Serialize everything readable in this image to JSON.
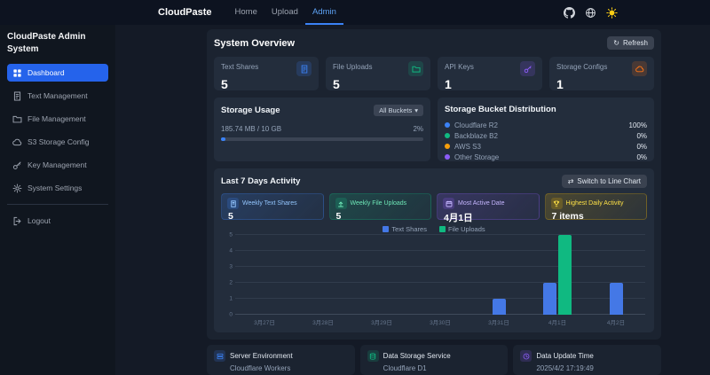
{
  "navbar": {
    "brand": "CloudPaste",
    "items": [
      {
        "label": "Home"
      },
      {
        "label": "Upload"
      },
      {
        "label": "Admin",
        "active": true
      }
    ],
    "icons": [
      "github-icon",
      "language-icon",
      "theme-toggle-sun-icon"
    ]
  },
  "sidebar": {
    "title": "CloudPaste Admin System",
    "items": [
      {
        "label": "Dashboard",
        "icon": "dashboard-icon",
        "active": true
      },
      {
        "label": "Text Management",
        "icon": "text-document-icon"
      },
      {
        "label": "File Management",
        "icon": "folder-icon"
      },
      {
        "label": "S3 Storage Config",
        "icon": "cloud-storage-icon"
      },
      {
        "label": "Key Management",
        "icon": "key-icon"
      },
      {
        "label": "System Settings",
        "icon": "gear-icon"
      }
    ],
    "logout_label": "Logout"
  },
  "overview": {
    "title": "System Overview",
    "refresh_label": "Refresh",
    "stats": [
      {
        "label": "Text Shares",
        "value": "5",
        "color": "#3b82f6",
        "icon": "text-document-icon"
      },
      {
        "label": "File Uploads",
        "value": "5",
        "color": "#10b981",
        "icon": "folder-icon"
      },
      {
        "label": "API Keys",
        "value": "1",
        "color": "#8b5cf6",
        "icon": "key-icon"
      },
      {
        "label": "Storage Configs",
        "value": "1",
        "color": "#f97316",
        "icon": "cloud-storage-icon"
      }
    ]
  },
  "storage_usage": {
    "title": "Storage Usage",
    "bucket_filter": "All Buckets",
    "usage_text": "185.74 MB / 10 GB",
    "percent_label": "2%",
    "percent_value": 2,
    "bar_color": "#3b82f6"
  },
  "distribution": {
    "title": "Storage Bucket Distribution",
    "items": [
      {
        "name": "Cloudflare R2",
        "percent": "100%",
        "color": "#3b82f6"
      },
      {
        "name": "Backblaze B2",
        "percent": "0%",
        "color": "#10b981"
      },
      {
        "name": "AWS S3",
        "percent": "0%",
        "color": "#f59e0b"
      },
      {
        "name": "Other Storage",
        "percent": "0%",
        "color": "#8b5cf6"
      }
    ]
  },
  "activity": {
    "title": "Last 7 Days Activity",
    "switch_chart_label": "Switch to Line Chart",
    "mini_stats": [
      {
        "label": "Weekly Text Shares",
        "value": "5",
        "color": "#3b82f6",
        "label_color": "#93c5fd",
        "icon": "text-document-icon"
      },
      {
        "label": "Weekly File Uploads",
        "value": "5",
        "color": "#10b981",
        "label_color": "#6ee7b7",
        "icon": "upload-icon"
      },
      {
        "label": "Most Active Date",
        "value": "4月1日",
        "color": "#8b5cf6",
        "label_color": "#c4b5fd",
        "icon": "calendar-icon"
      },
      {
        "label": "Highest Daily Activity",
        "value": "7 items",
        "color": "#eab308",
        "label_color": "#fde047",
        "icon": "trophy-icon"
      }
    ]
  },
  "chart_data": {
    "type": "bar",
    "title": "Last 7 Days Activity",
    "categories": [
      "3月27日",
      "3月28日",
      "3月29日",
      "3月30日",
      "3月31日",
      "4月1日",
      "4月2日"
    ],
    "series": [
      {
        "name": "Text Shares",
        "color": "#4478e6",
        "values": [
          0,
          0,
          0,
          0,
          1,
          2,
          2
        ]
      },
      {
        "name": "File Uploads",
        "color": "#10b981",
        "values": [
          0,
          0,
          0,
          0,
          0,
          5,
          0
        ]
      }
    ],
    "ylim": [
      0,
      5
    ],
    "yticks": [
      0,
      1,
      2,
      3,
      4,
      5
    ],
    "grid": true,
    "legend_position": "top-center"
  },
  "footer_cards": [
    {
      "label": "Server Environment",
      "value": "Cloudflare Workers",
      "color": "#3b82f6",
      "icon": "server-icon"
    },
    {
      "label": "Data Storage Service",
      "value": "Cloudflare D1",
      "color": "#10b981",
      "icon": "database-icon"
    },
    {
      "label": "Data Update Time",
      "value": "2025/4/2 17:19:49",
      "color": "#8b5cf6",
      "icon": "clock-icon"
    }
  ]
}
